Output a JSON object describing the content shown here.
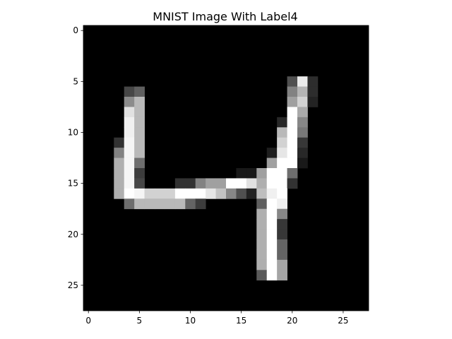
{
  "chart_data": {
    "type": "heatmap",
    "title": "MNIST Image With Label4",
    "colormap": "gray",
    "value_range": [
      0,
      255
    ],
    "xlabel": "",
    "ylabel": "",
    "xlim": [
      -0.5,
      27.5
    ],
    "ylim": [
      27.5,
      -0.5
    ],
    "xticks": [
      0,
      5,
      10,
      15,
      20,
      25
    ],
    "yticks": [
      0,
      5,
      10,
      15,
      20,
      25
    ],
    "shape": [
      28,
      28
    ],
    "cells": [
      [
        5,
        20,
        80
      ],
      [
        5,
        21,
        235
      ],
      [
        5,
        22,
        45
      ],
      [
        6,
        4,
        70
      ],
      [
        6,
        5,
        95
      ],
      [
        6,
        20,
        130
      ],
      [
        6,
        21,
        180
      ],
      [
        6,
        22,
        45
      ],
      [
        7,
        4,
        140
      ],
      [
        7,
        5,
        185
      ],
      [
        7,
        20,
        160
      ],
      [
        7,
        21,
        210
      ],
      [
        7,
        22,
        35
      ],
      [
        8,
        4,
        225
      ],
      [
        8,
        5,
        185
      ],
      [
        8,
        20,
        255
      ],
      [
        8,
        21,
        170
      ],
      [
        9,
        4,
        240
      ],
      [
        9,
        5,
        185
      ],
      [
        9,
        19,
        40
      ],
      [
        9,
        20,
        255
      ],
      [
        9,
        21,
        135
      ],
      [
        10,
        4,
        240
      ],
      [
        10,
        5,
        185
      ],
      [
        10,
        19,
        185
      ],
      [
        10,
        20,
        255
      ],
      [
        10,
        21,
        120
      ],
      [
        11,
        3,
        50
      ],
      [
        11,
        4,
        245
      ],
      [
        11,
        5,
        185
      ],
      [
        11,
        19,
        210
      ],
      [
        11,
        20,
        255
      ],
      [
        11,
        21,
        55
      ],
      [
        12,
        3,
        130
      ],
      [
        12,
        4,
        245
      ],
      [
        12,
        5,
        185
      ],
      [
        12,
        18,
        30
      ],
      [
        12,
        19,
        230
      ],
      [
        12,
        20,
        255
      ],
      [
        12,
        21,
        40
      ],
      [
        13,
        3,
        175
      ],
      [
        13,
        4,
        245
      ],
      [
        13,
        5,
        110
      ],
      [
        13,
        18,
        160
      ],
      [
        13,
        19,
        255
      ],
      [
        13,
        20,
        255
      ],
      [
        13,
        21,
        25
      ],
      [
        14,
        3,
        175
      ],
      [
        14,
        4,
        245
      ],
      [
        14,
        5,
        60
      ],
      [
        14,
        15,
        25
      ],
      [
        14,
        16,
        25
      ],
      [
        14,
        17,
        160
      ],
      [
        14,
        18,
        255
      ],
      [
        14,
        19,
        255
      ],
      [
        14,
        20,
        110
      ],
      [
        15,
        3,
        175
      ],
      [
        15,
        4,
        245
      ],
      [
        15,
        5,
        70
      ],
      [
        15,
        9,
        50
      ],
      [
        15,
        10,
        50
      ],
      [
        15,
        11,
        130
      ],
      [
        15,
        12,
        160
      ],
      [
        15,
        13,
        160
      ],
      [
        15,
        14,
        255
      ],
      [
        15,
        15,
        255
      ],
      [
        15,
        16,
        225
      ],
      [
        15,
        17,
        175
      ],
      [
        15,
        18,
        255
      ],
      [
        15,
        19,
        255
      ],
      [
        15,
        20,
        50
      ],
      [
        16,
        3,
        175
      ],
      [
        16,
        4,
        255
      ],
      [
        16,
        5,
        245
      ],
      [
        16,
        6,
        210
      ],
      [
        16,
        7,
        210
      ],
      [
        16,
        8,
        210
      ],
      [
        16,
        9,
        255
      ],
      [
        16,
        10,
        255
      ],
      [
        16,
        11,
        255
      ],
      [
        16,
        12,
        230
      ],
      [
        16,
        13,
        195
      ],
      [
        16,
        14,
        135
      ],
      [
        16,
        15,
        80
      ],
      [
        16,
        16,
        35
      ],
      [
        16,
        17,
        190
      ],
      [
        16,
        18,
        240
      ],
      [
        16,
        19,
        255
      ],
      [
        17,
        4,
        110
      ],
      [
        17,
        5,
        185
      ],
      [
        17,
        6,
        185
      ],
      [
        17,
        7,
        185
      ],
      [
        17,
        8,
        185
      ],
      [
        17,
        9,
        185
      ],
      [
        17,
        10,
        100
      ],
      [
        17,
        11,
        60
      ],
      [
        17,
        17,
        95
      ],
      [
        17,
        18,
        255
      ],
      [
        17,
        19,
        240
      ],
      [
        18,
        17,
        175
      ],
      [
        18,
        18,
        255
      ],
      [
        18,
        19,
        135
      ],
      [
        19,
        17,
        175
      ],
      [
        19,
        18,
        255
      ],
      [
        19,
        19,
        55
      ],
      [
        20,
        17,
        175
      ],
      [
        20,
        18,
        255
      ],
      [
        20,
        19,
        55
      ],
      [
        21,
        17,
        175
      ],
      [
        21,
        18,
        255
      ],
      [
        21,
        19,
        100
      ],
      [
        22,
        17,
        175
      ],
      [
        22,
        18,
        255
      ],
      [
        22,
        19,
        100
      ],
      [
        23,
        17,
        175
      ],
      [
        23,
        18,
        255
      ],
      [
        23,
        19,
        165
      ],
      [
        24,
        17,
        90
      ],
      [
        24,
        18,
        255
      ],
      [
        24,
        19,
        165
      ]
    ]
  }
}
